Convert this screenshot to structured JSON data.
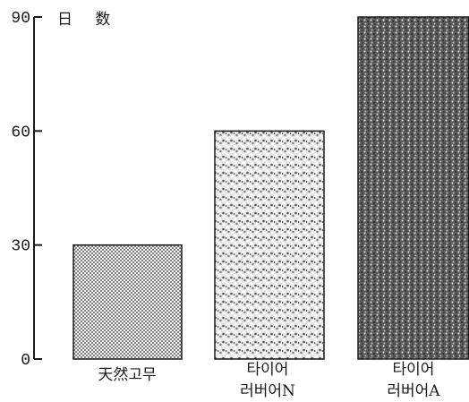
{
  "chart_data": {
    "type": "bar",
    "ylabel": "日 数",
    "ylim": [
      0,
      90
    ],
    "yticks": [
      0,
      30,
      60,
      90
    ],
    "categories": [
      [
        "天然고무"
      ],
      [
        "타이어",
        "러버어N"
      ],
      [
        "타이어",
        "러버어A"
      ]
    ],
    "values": [
      30,
      60,
      90
    ],
    "patterns": [
      "fine-crosshatch-dots",
      "coarse-speckle",
      "dense-dark-speckle"
    ],
    "grid": false
  }
}
